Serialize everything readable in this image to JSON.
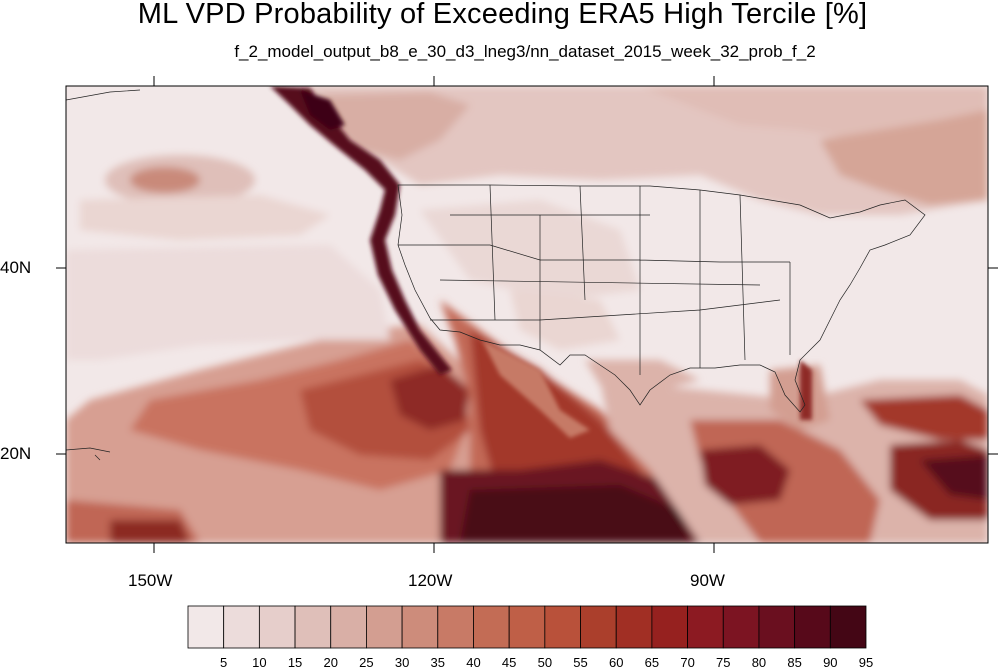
{
  "title": "ML VPD Probability of Exceeding ERA5 High Tercile [%]",
  "subtitle": "f_2_model_output_b8_e_30_d3_lneg3/nn_dataset_2015_week_32_prob_f_2",
  "lat_labels": [
    "40N",
    "20N"
  ],
  "lon_labels": [
    "150W",
    "120W",
    "90W"
  ],
  "colorbar": {
    "labels": [
      "5",
      "10",
      "15",
      "20",
      "25",
      "30",
      "35",
      "40",
      "45",
      "50",
      "55",
      "60",
      "65",
      "70",
      "75",
      "80",
      "85",
      "90",
      "95"
    ],
    "colors": [
      "#f2e8e8",
      "#ecdcdb",
      "#e6cecb",
      "#dfbfb9",
      "#d9afa6",
      "#d39e91",
      "#cd8c7b",
      "#c87a66",
      "#c36c55",
      "#bf5f47",
      "#b9513a",
      "#ab3f2c",
      "#a12f24",
      "#96211f",
      "#8c1a22",
      "#7c1422",
      "#6a0f1f",
      "#57091a",
      "#440615"
    ]
  }
}
